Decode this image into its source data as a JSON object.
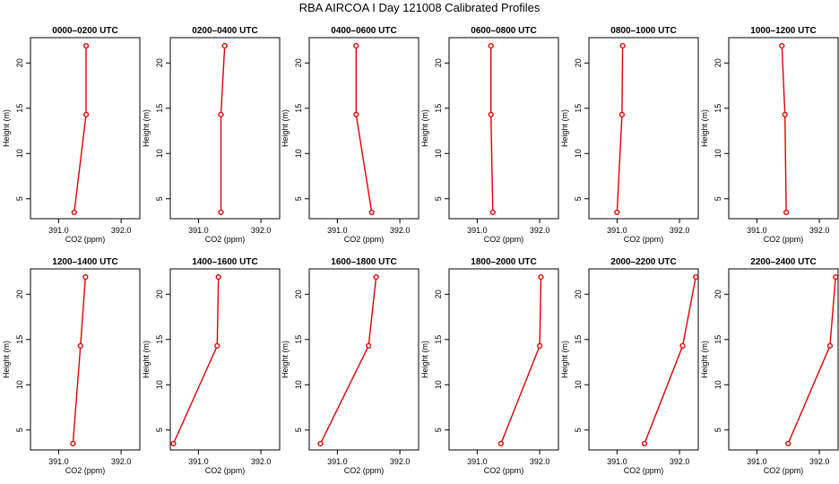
{
  "title": "RBA AIRCOA I  Day 121008  Calibrated Profiles",
  "chart_data": {
    "type": "line",
    "title": "RBA AIRCOA I  Day 121008  Calibrated Profiles",
    "xlabel": "CO2 (ppm)",
    "ylabel": "Height (m)",
    "xlim": [
      390.55,
      392.3
    ],
    "ylim": [
      2.8,
      22.8
    ],
    "x_ticks": [
      391.0,
      392.0
    ],
    "x_tick_labels": [
      "391.0",
      "392.0"
    ],
    "y_ticks": [
      5,
      10,
      15,
      20
    ],
    "y_tick_labels": [
      "5",
      "10",
      "15",
      "20"
    ],
    "grid": false,
    "legend": "none",
    "color": "#e00000",
    "heights": [
      3.5,
      14.3,
      21.9
    ],
    "panels": [
      {
        "title": "0000–0200 UTC",
        "co2": [
          391.25,
          391.44,
          391.44
        ]
      },
      {
        "title": "0200–0400 UTC",
        "co2": [
          391.36,
          391.36,
          391.42
        ]
      },
      {
        "title": "0400–0600 UTC",
        "co2": [
          391.55,
          391.3,
          391.3
        ]
      },
      {
        "title": "0600–0800 UTC",
        "co2": [
          391.25,
          391.22,
          391.22
        ]
      },
      {
        "title": "0800–1000 UTC",
        "co2": [
          391.0,
          391.08,
          391.09
        ]
      },
      {
        "title": "1000–1200 UTC",
        "co2": [
          391.47,
          391.45,
          391.4
        ]
      },
      {
        "title": "1200–1400 UTC",
        "co2": [
          391.23,
          391.35,
          391.43
        ]
      },
      {
        "title": "1400–1600 UTC",
        "co2": [
          390.6,
          391.3,
          391.32
        ]
      },
      {
        "title": "1600–1800 UTC",
        "co2": [
          390.73,
          391.5,
          391.62
        ]
      },
      {
        "title": "1800–2000 UTC",
        "co2": [
          391.38,
          392.0,
          392.02
        ]
      },
      {
        "title": "2000–2200 UTC",
        "co2": [
          391.44,
          392.05,
          392.26
        ]
      },
      {
        "title": "2200–2400 UTC",
        "co2": [
          391.5,
          392.17,
          392.26
        ]
      }
    ]
  }
}
